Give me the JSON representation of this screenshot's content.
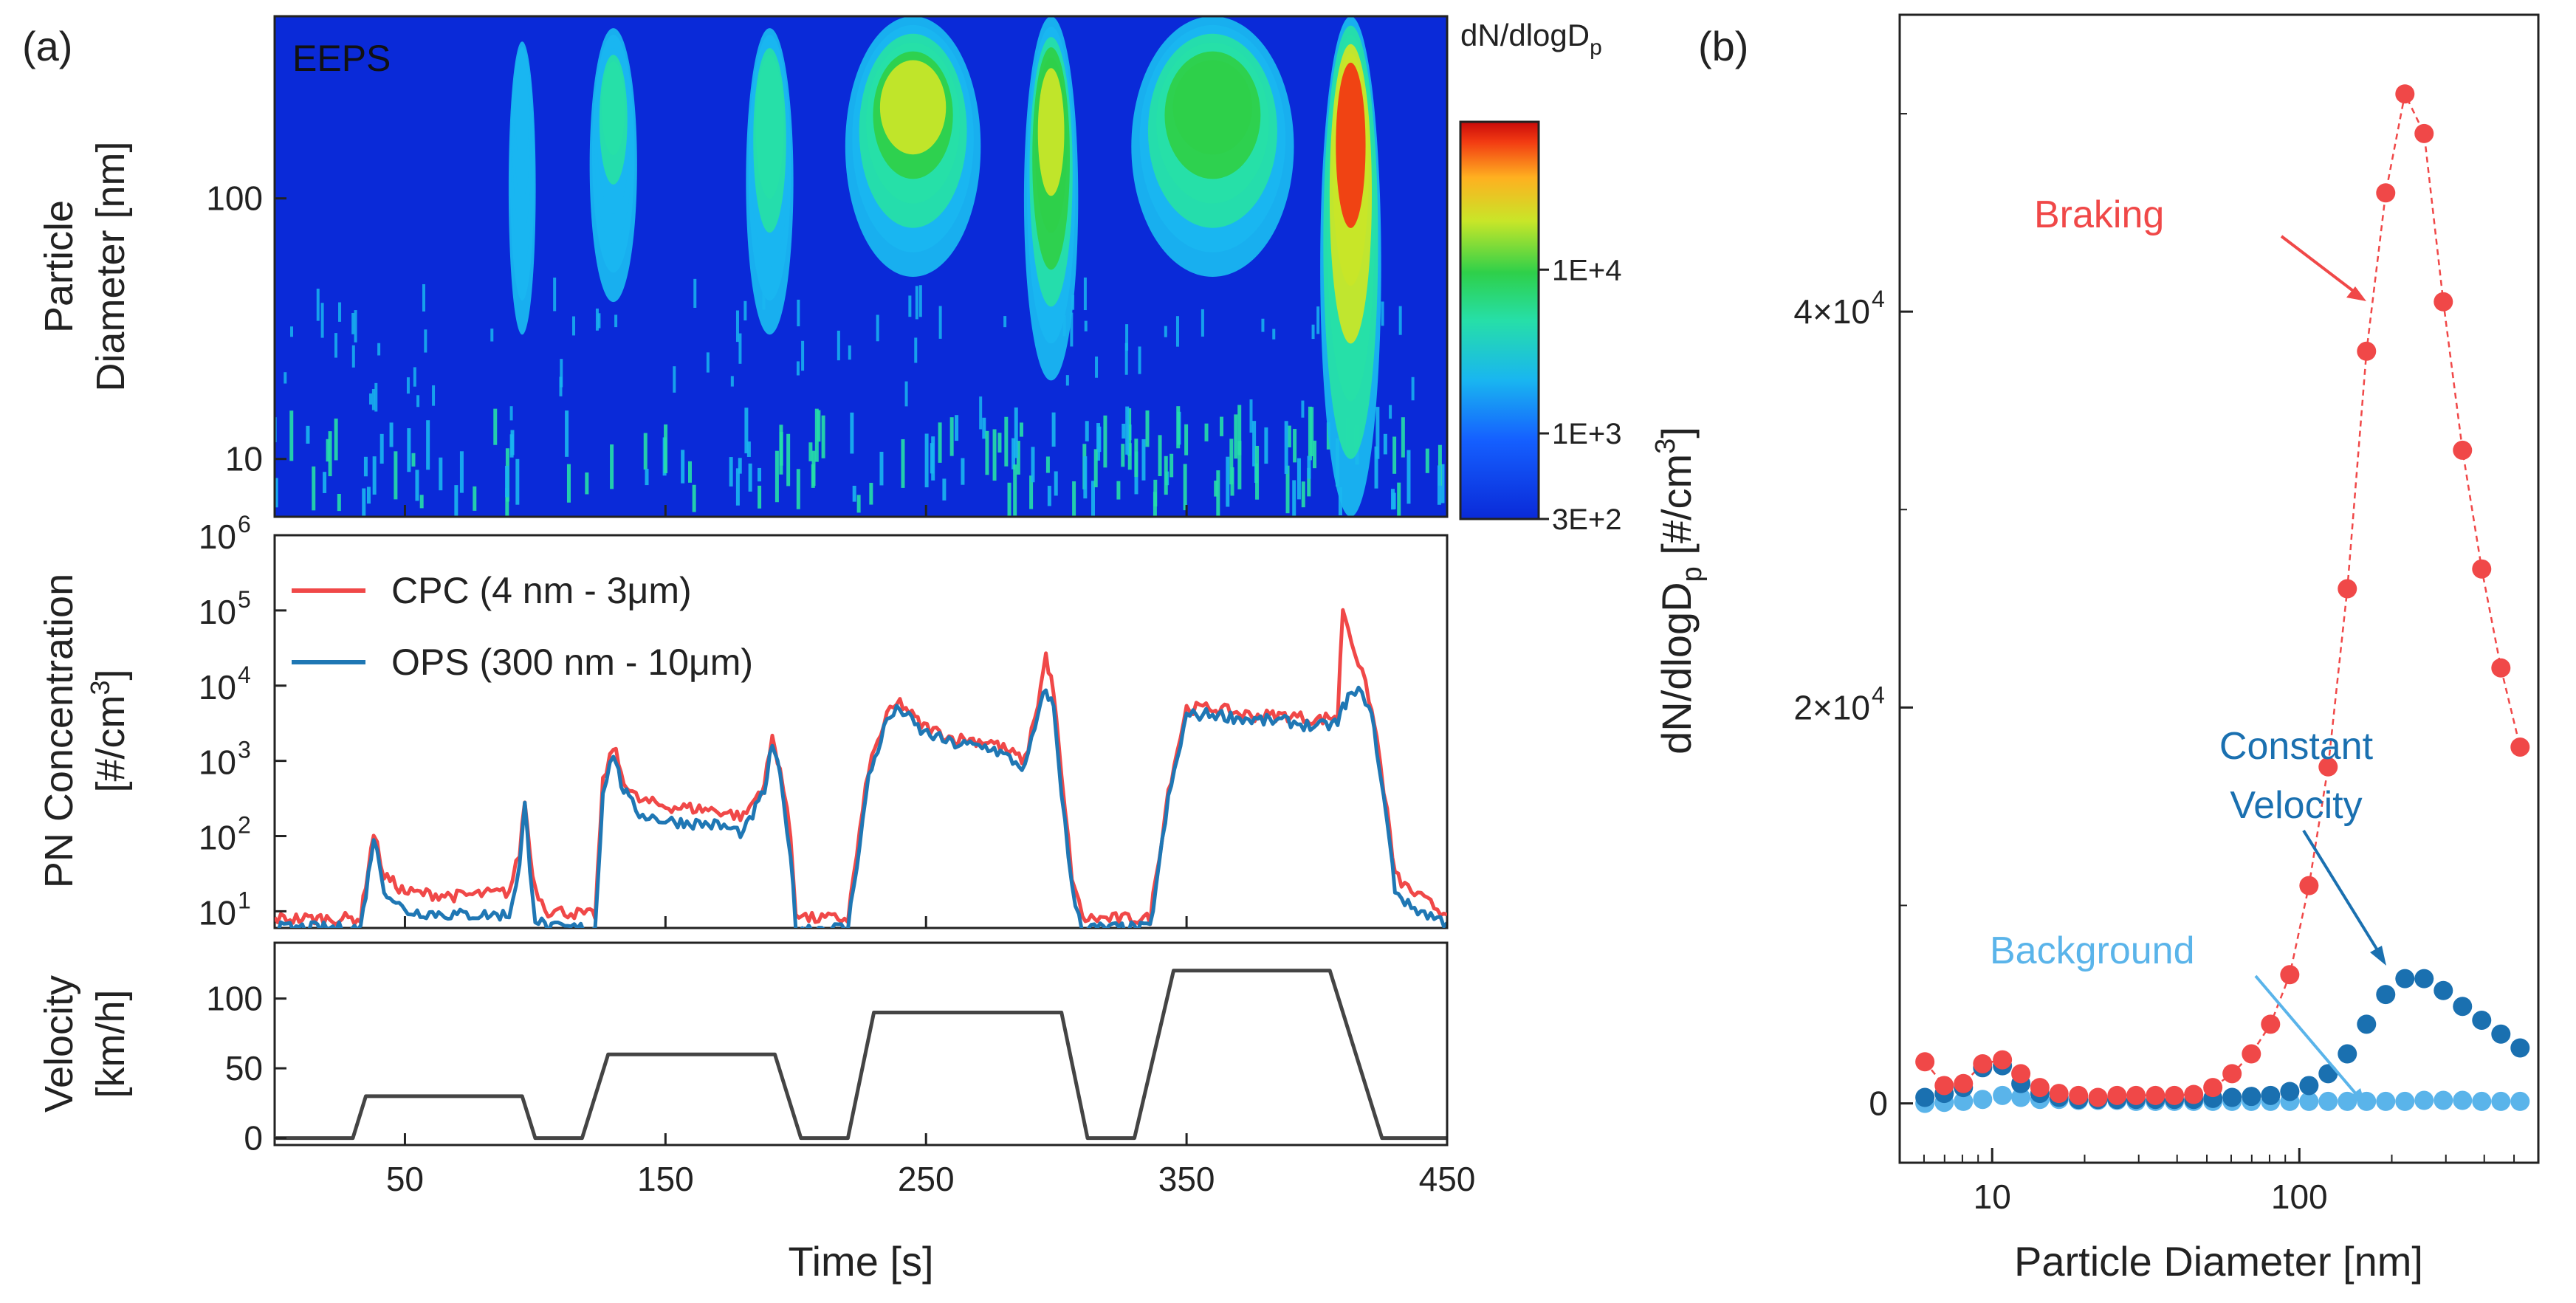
{
  "panel_labels": {
    "a": "(a)",
    "b": "(b)"
  },
  "colors": {
    "cpc": "#f04848",
    "ops": "#1f77b4",
    "velocity": "#444444",
    "braking": "#f04848",
    "constant_velocity": "#1a70b0",
    "background": "#5ab4ea",
    "heatmap_bg": "#0a2ad8"
  },
  "chart_data": [
    {
      "id": "eeps",
      "type": "heatmap",
      "title": "EEPS",
      "ylabel_line1": "Particle",
      "ylabel_line2": "Diameter [nm]",
      "ylim": [
        6,
        500
      ],
      "ylog": true,
      "yticks": [
        10,
        100
      ],
      "ytick_labels": [
        "10",
        "100"
      ],
      "xlim": [
        0,
        450
      ],
      "colorbar": {
        "title": "dN/dlogD",
        "title_sub": "p",
        "scale": "log",
        "range": [
          300,
          80000
        ],
        "ticks": [
          10000,
          1000,
          300
        ],
        "tick_labels": [
          "1E+4",
          "1E+3",
          "3E+2"
        ]
      },
      "events": [
        {
          "t": 95,
          "dmin": 30,
          "dmax": 400,
          "peak_d": 250,
          "level": 0.3,
          "dur": 4
        },
        {
          "t": 130,
          "dmin": 40,
          "dmax": 450,
          "peak_d": 250,
          "level": 0.42,
          "dur": 7
        },
        {
          "t": 190,
          "dmin": 30,
          "dmax": 450,
          "peak_d": 250,
          "level": 0.55,
          "dur": 7
        },
        {
          "t": 245,
          "dmin": 50,
          "dmax": 500,
          "peak_d": 230,
          "level": 0.7,
          "dur": 20
        },
        {
          "t": 298,
          "dmin": 20,
          "dmax": 500,
          "peak_d": 200,
          "level": 0.8,
          "dur": 8
        },
        {
          "t": 360,
          "dmin": 50,
          "dmax": 500,
          "peak_d": 230,
          "level": 0.66,
          "dur": 24
        },
        {
          "t": 413,
          "dmin": 6,
          "dmax": 500,
          "peak_d": 220,
          "level": 1.0,
          "dur": 9
        }
      ]
    },
    {
      "id": "pn",
      "type": "line",
      "ylabel_line1": "PN Concentration",
      "ylabel_line2": "[#/cm",
      "ylabel_sup": "3",
      "ylabel_end": "]",
      "ylog": true,
      "ylim": [
        6,
        1000000
      ],
      "yticks": [
        10,
        100,
        1000,
        10000,
        100000,
        1000000
      ],
      "ytick_base": "10",
      "ytick_exps": [
        "1",
        "2",
        "3",
        "4",
        "5",
        "6"
      ],
      "xlim": [
        0,
        450
      ],
      "legend": {
        "position": "top-left"
      },
      "series": [
        {
          "name": "CPC (4 nm - 3μm)",
          "key": "cpc",
          "x": [
            0,
            20,
            33,
            36,
            38,
            42,
            50,
            70,
            90,
            94,
            96,
            98,
            100,
            105,
            110,
            120,
            123,
            126,
            130,
            133,
            136,
            140,
            150,
            170,
            180,
            188,
            191,
            194,
            198,
            200,
            205,
            215,
            220,
            228,
            235,
            240,
            248,
            260,
            275,
            288,
            293,
            296,
            299,
            302,
            306,
            310,
            318,
            330,
            336,
            343,
            350,
            360,
            375,
            390,
            400,
            408,
            410,
            412,
            416,
            420,
            423,
            427,
            430,
            435,
            440,
            450
          ],
          "y": [
            8,
            8,
            8,
            40,
            110,
            30,
            18,
            16,
            18,
            60,
            300,
            60,
            20,
            10,
            10,
            9,
            9,
            500,
            1600,
            700,
            400,
            300,
            250,
            220,
            180,
            500,
            2000,
            800,
            100,
            10,
            8,
            8,
            8,
            800,
            4000,
            6000,
            3000,
            2000,
            1800,
            1000,
            6000,
            25000,
            8000,
            600,
            30,
            8,
            8,
            8,
            8,
            400,
            5000,
            5000,
            4000,
            4000,
            3500,
            4000,
            110000,
            60000,
            20000,
            7000,
            2000,
            200,
            30,
            20,
            15,
            9
          ]
        },
        {
          "name": "OPS (300 nm - 10μm)",
          "key": "ops",
          "x": [
            0,
            20,
            33,
            36,
            38,
            42,
            50,
            70,
            90,
            94,
            96,
            98,
            100,
            105,
            110,
            120,
            123,
            126,
            130,
            133,
            136,
            140,
            150,
            170,
            180,
            188,
            191,
            194,
            198,
            200,
            205,
            215,
            220,
            228,
            235,
            240,
            248,
            260,
            275,
            288,
            293,
            296,
            299,
            302,
            306,
            310,
            318,
            330,
            336,
            343,
            350,
            360,
            375,
            390,
            400,
            408,
            410,
            412,
            416,
            420,
            423,
            427,
            430,
            435,
            440,
            450
          ],
          "y": [
            6,
            6,
            6,
            30,
            100,
            20,
            10,
            9,
            9,
            40,
            250,
            40,
            8,
            6,
            6,
            6,
            6,
            400,
            1300,
            500,
            300,
            200,
            160,
            140,
            110,
            400,
            1700,
            600,
            60,
            6,
            6,
            6,
            6,
            600,
            3500,
            5000,
            2500,
            1700,
            1500,
            800,
            4000,
            9000,
            5000,
            400,
            20,
            6,
            6,
            6,
            6,
            300,
            4000,
            4200,
            3500,
            3300,
            2800,
            3200,
            5000,
            7000,
            8000,
            6000,
            1500,
            150,
            20,
            12,
            10,
            7
          ]
        }
      ]
    },
    {
      "id": "velocity",
      "type": "line",
      "ylabel_line1": "Velocity",
      "ylabel_line2": "[km/h]",
      "xlabel": "Time [s]",
      "xlim": [
        0,
        450
      ],
      "ylim": [
        -5,
        140
      ],
      "yticks": [
        0,
        50,
        100
      ],
      "ytick_labels": [
        "0",
        "50",
        "100"
      ],
      "xticks": [
        50,
        150,
        250,
        350,
        450
      ],
      "xtick_labels": [
        "50",
        "150",
        "250",
        "350",
        "450"
      ],
      "series": [
        {
          "name": "Velocity",
          "x": [
            0,
            30,
            35,
            95,
            100,
            118,
            128,
            192,
            202,
            220,
            230,
            302,
            312,
            330,
            345,
            405,
            425,
            450
          ],
          "y": [
            0,
            0,
            30,
            30,
            0,
            0,
            60,
            60,
            0,
            0,
            90,
            90,
            0,
            0,
            120,
            120,
            0,
            0
          ]
        }
      ]
    },
    {
      "id": "size_distribution",
      "type": "scatter",
      "xlabel": "Particle Diameter [nm]",
      "ylabel": "dN/dlogD",
      "ylabel_sub": "p",
      "ylabel_unit": " [#/cm",
      "ylabel_sup": "3",
      "ylabel_end": "]",
      "xlog": true,
      "xlim": [
        5,
        600
      ],
      "ylim": [
        -3000,
        55000
      ],
      "xticks": [
        10,
        100
      ],
      "xtick_labels": [
        "10",
        "100"
      ],
      "yticks": [
        0,
        20000,
        40000
      ],
      "ytick_labels": [
        "0",
        "2×10",
        "4×10"
      ],
      "ytick_sups": [
        "",
        "4",
        "4"
      ],
      "x": [
        6.04,
        6.98,
        8.06,
        9.31,
        10.8,
        12.4,
        14.3,
        16.5,
        19.1,
        22.1,
        25.5,
        29.4,
        34.0,
        39.2,
        45.3,
        52.3,
        60.4,
        69.8,
        80.6,
        93.1,
        107.5,
        124.1,
        143.3,
        165.5,
        191.1,
        220.7,
        254.8,
        294.3,
        339.8,
        392.4,
        453.2,
        523.3
      ],
      "series": [
        {
          "name": "Braking",
          "key": "braking",
          "values": [
            2100,
            900,
            1000,
            2000,
            2200,
            1500,
            800,
            500,
            400,
            300,
            400,
            400,
            400,
            400,
            450,
            800,
            1500,
            2500,
            4000,
            6500,
            11000,
            17000,
            26000,
            38000,
            46000,
            51000,
            49000,
            40500,
            33000,
            27000,
            22000,
            18000
          ],
          "annotation": "Braking"
        },
        {
          "name": "Constant Velocity",
          "key": "constant_velocity",
          "values": [
            300,
            500,
            800,
            1800,
            1900,
            1000,
            500,
            300,
            200,
            200,
            200,
            200,
            200,
            200,
            200,
            250,
            300,
            350,
            400,
            600,
            900,
            1500,
            2500,
            4000,
            5500,
            6300,
            6300,
            5700,
            4900,
            4200,
            3500,
            2800
          ],
          "annotation_line1": "Constant",
          "annotation_line2": "Velocity"
        },
        {
          "name": "Background",
          "key": "background",
          "values": [
            0,
            50,
            100,
            200,
            400,
            300,
            200,
            200,
            150,
            150,
            150,
            100,
            100,
            100,
            100,
            100,
            100,
            100,
            100,
            100,
            100,
            100,
            100,
            100,
            100,
            100,
            150,
            150,
            150,
            100,
            100,
            100
          ],
          "annotation": "Background"
        }
      ]
    }
  ]
}
